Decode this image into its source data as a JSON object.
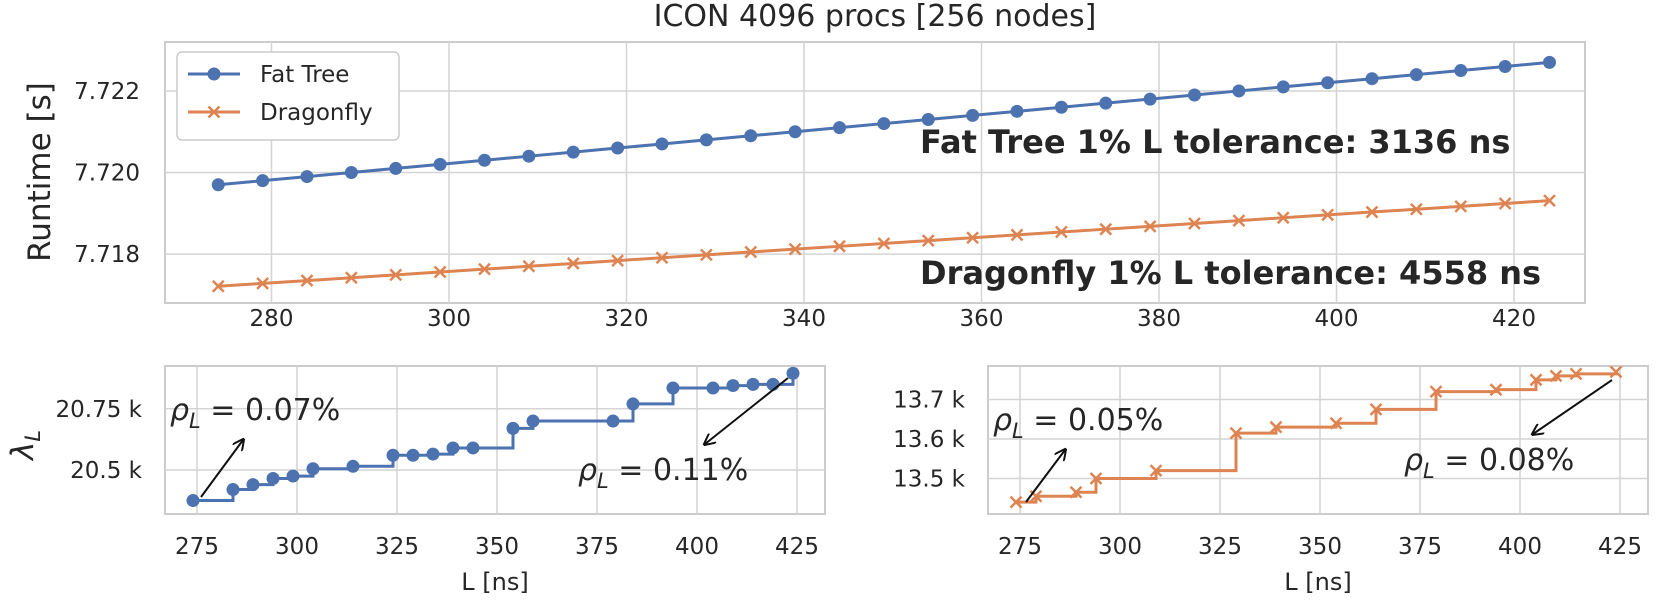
{
  "colors": {
    "fat_tree": "#4c72b0",
    "dragonfly": "#dd8452"
  },
  "chart_data": [
    {
      "type": "line",
      "title": "ICON 4096 procs [256 nodes]",
      "xlabel": "",
      "ylabel": "Runtime [s]",
      "xlim": [
        268,
        428
      ],
      "ylim": [
        7.7168,
        7.7232
      ],
      "xticks": [
        "280",
        "300",
        "320",
        "340",
        "360",
        "380",
        "400",
        "420"
      ],
      "yticks": [
        "7.718",
        "7.720",
        "7.722"
      ],
      "grid": true,
      "legend": "top-left",
      "x": [
        274,
        279,
        284,
        289,
        294,
        299,
        304,
        309,
        314,
        319,
        324,
        329,
        334,
        339,
        344,
        349,
        354,
        359,
        364,
        369,
        374,
        379,
        384,
        389,
        394,
        399,
        404,
        409,
        414,
        419,
        424
      ],
      "series": [
        {
          "name": "Fat Tree",
          "marker": "circle",
          "color_key": "fat_tree",
          "values": [
            7.7197,
            7.7198,
            7.7199,
            7.72,
            7.7201,
            7.7202,
            7.7203,
            7.7204,
            7.7205,
            7.7206,
            7.7207,
            7.7208,
            7.7209,
            7.721,
            7.7211,
            7.7212,
            7.7213,
            7.7214,
            7.7215,
            7.7216,
            7.7217,
            7.7218,
            7.7219,
            7.722,
            7.7221,
            7.7222,
            7.7223,
            7.7224,
            7.7225,
            7.7226,
            7.7227
          ]
        },
        {
          "name": "Dragonfly",
          "marker": "x",
          "color_key": "dragonfly",
          "values": [
            7.71721,
            7.71728,
            7.71735,
            7.71742,
            7.71749,
            7.71756,
            7.71763,
            7.7177,
            7.71777,
            7.71784,
            7.71791,
            7.71798,
            7.71805,
            7.71812,
            7.71819,
            7.71826,
            7.71833,
            7.7184,
            7.71847,
            7.71854,
            7.71861,
            7.71868,
            7.71875,
            7.71882,
            7.71889,
            7.71896,
            7.71903,
            7.7191,
            7.71917,
            7.71924,
            7.71931
          ]
        }
      ],
      "annotations": [
        {
          "text": "Fat Tree 1% L tolerance: 3136 ns",
          "color_key": "fat_tree"
        },
        {
          "text": "Dragonfly 1% L tolerance: 4558 ns",
          "color_key": "dragonfly"
        }
      ]
    },
    {
      "type": "step",
      "title": "",
      "xlabel": "L [ns]",
      "ylabel": "λ_L",
      "xlim": [
        267,
        432
      ],
      "ylim": [
        20.32,
        20.925
      ],
      "xticks": [
        "275",
        "300",
        "325",
        "350",
        "375",
        "400",
        "425"
      ],
      "yticks": [
        "20.5 k",
        "20.75 k"
      ],
      "grid": true,
      "series": [
        {
          "name": "",
          "marker": "circle",
          "color_key": "fat_tree",
          "x": [
            274,
            284,
            289,
            294,
            299,
            304,
            314,
            324,
            329,
            334,
            339,
            344,
            354,
            359,
            379,
            384,
            394,
            404,
            409,
            414,
            419,
            424
          ],
          "values": [
            20.375,
            20.42,
            20.44,
            20.465,
            20.475,
            20.505,
            20.515,
            20.56,
            20.56,
            20.565,
            20.59,
            20.59,
            20.67,
            20.7,
            20.7,
            20.77,
            20.835,
            20.835,
            20.845,
            20.85,
            20.85,
            20.895
          ]
        }
      ],
      "annotations": [
        {
          "text": "ρ_L = 0.07%"
        },
        {
          "text": "ρ_L = 0.11%"
        }
      ]
    },
    {
      "type": "step",
      "title": "",
      "xlabel": "L [ns]",
      "ylabel": "",
      "xlim": [
        267,
        432
      ],
      "ylim": [
        13.41,
        13.785
      ],
      "xticks": [
        "275",
        "300",
        "325",
        "350",
        "375",
        "400",
        "425"
      ],
      "yticks": [
        "13.5 k",
        "13.6 k",
        "13.7 k"
      ],
      "grid": true,
      "series": [
        {
          "name": "",
          "marker": "x",
          "color_key": "dragonfly",
          "x": [
            274,
            279,
            289,
            294,
            309,
            329,
            339,
            354,
            364,
            379,
            394,
            404,
            409,
            414,
            424
          ],
          "values": [
            13.44,
            13.455,
            13.465,
            13.5,
            13.52,
            13.615,
            13.63,
            13.64,
            13.675,
            13.72,
            13.725,
            13.75,
            13.76,
            13.765,
            13.77
          ]
        }
      ],
      "annotations": [
        {
          "text": "ρ_L = 0.05%"
        },
        {
          "text": "ρ_L = 0.08%"
        }
      ]
    }
  ]
}
